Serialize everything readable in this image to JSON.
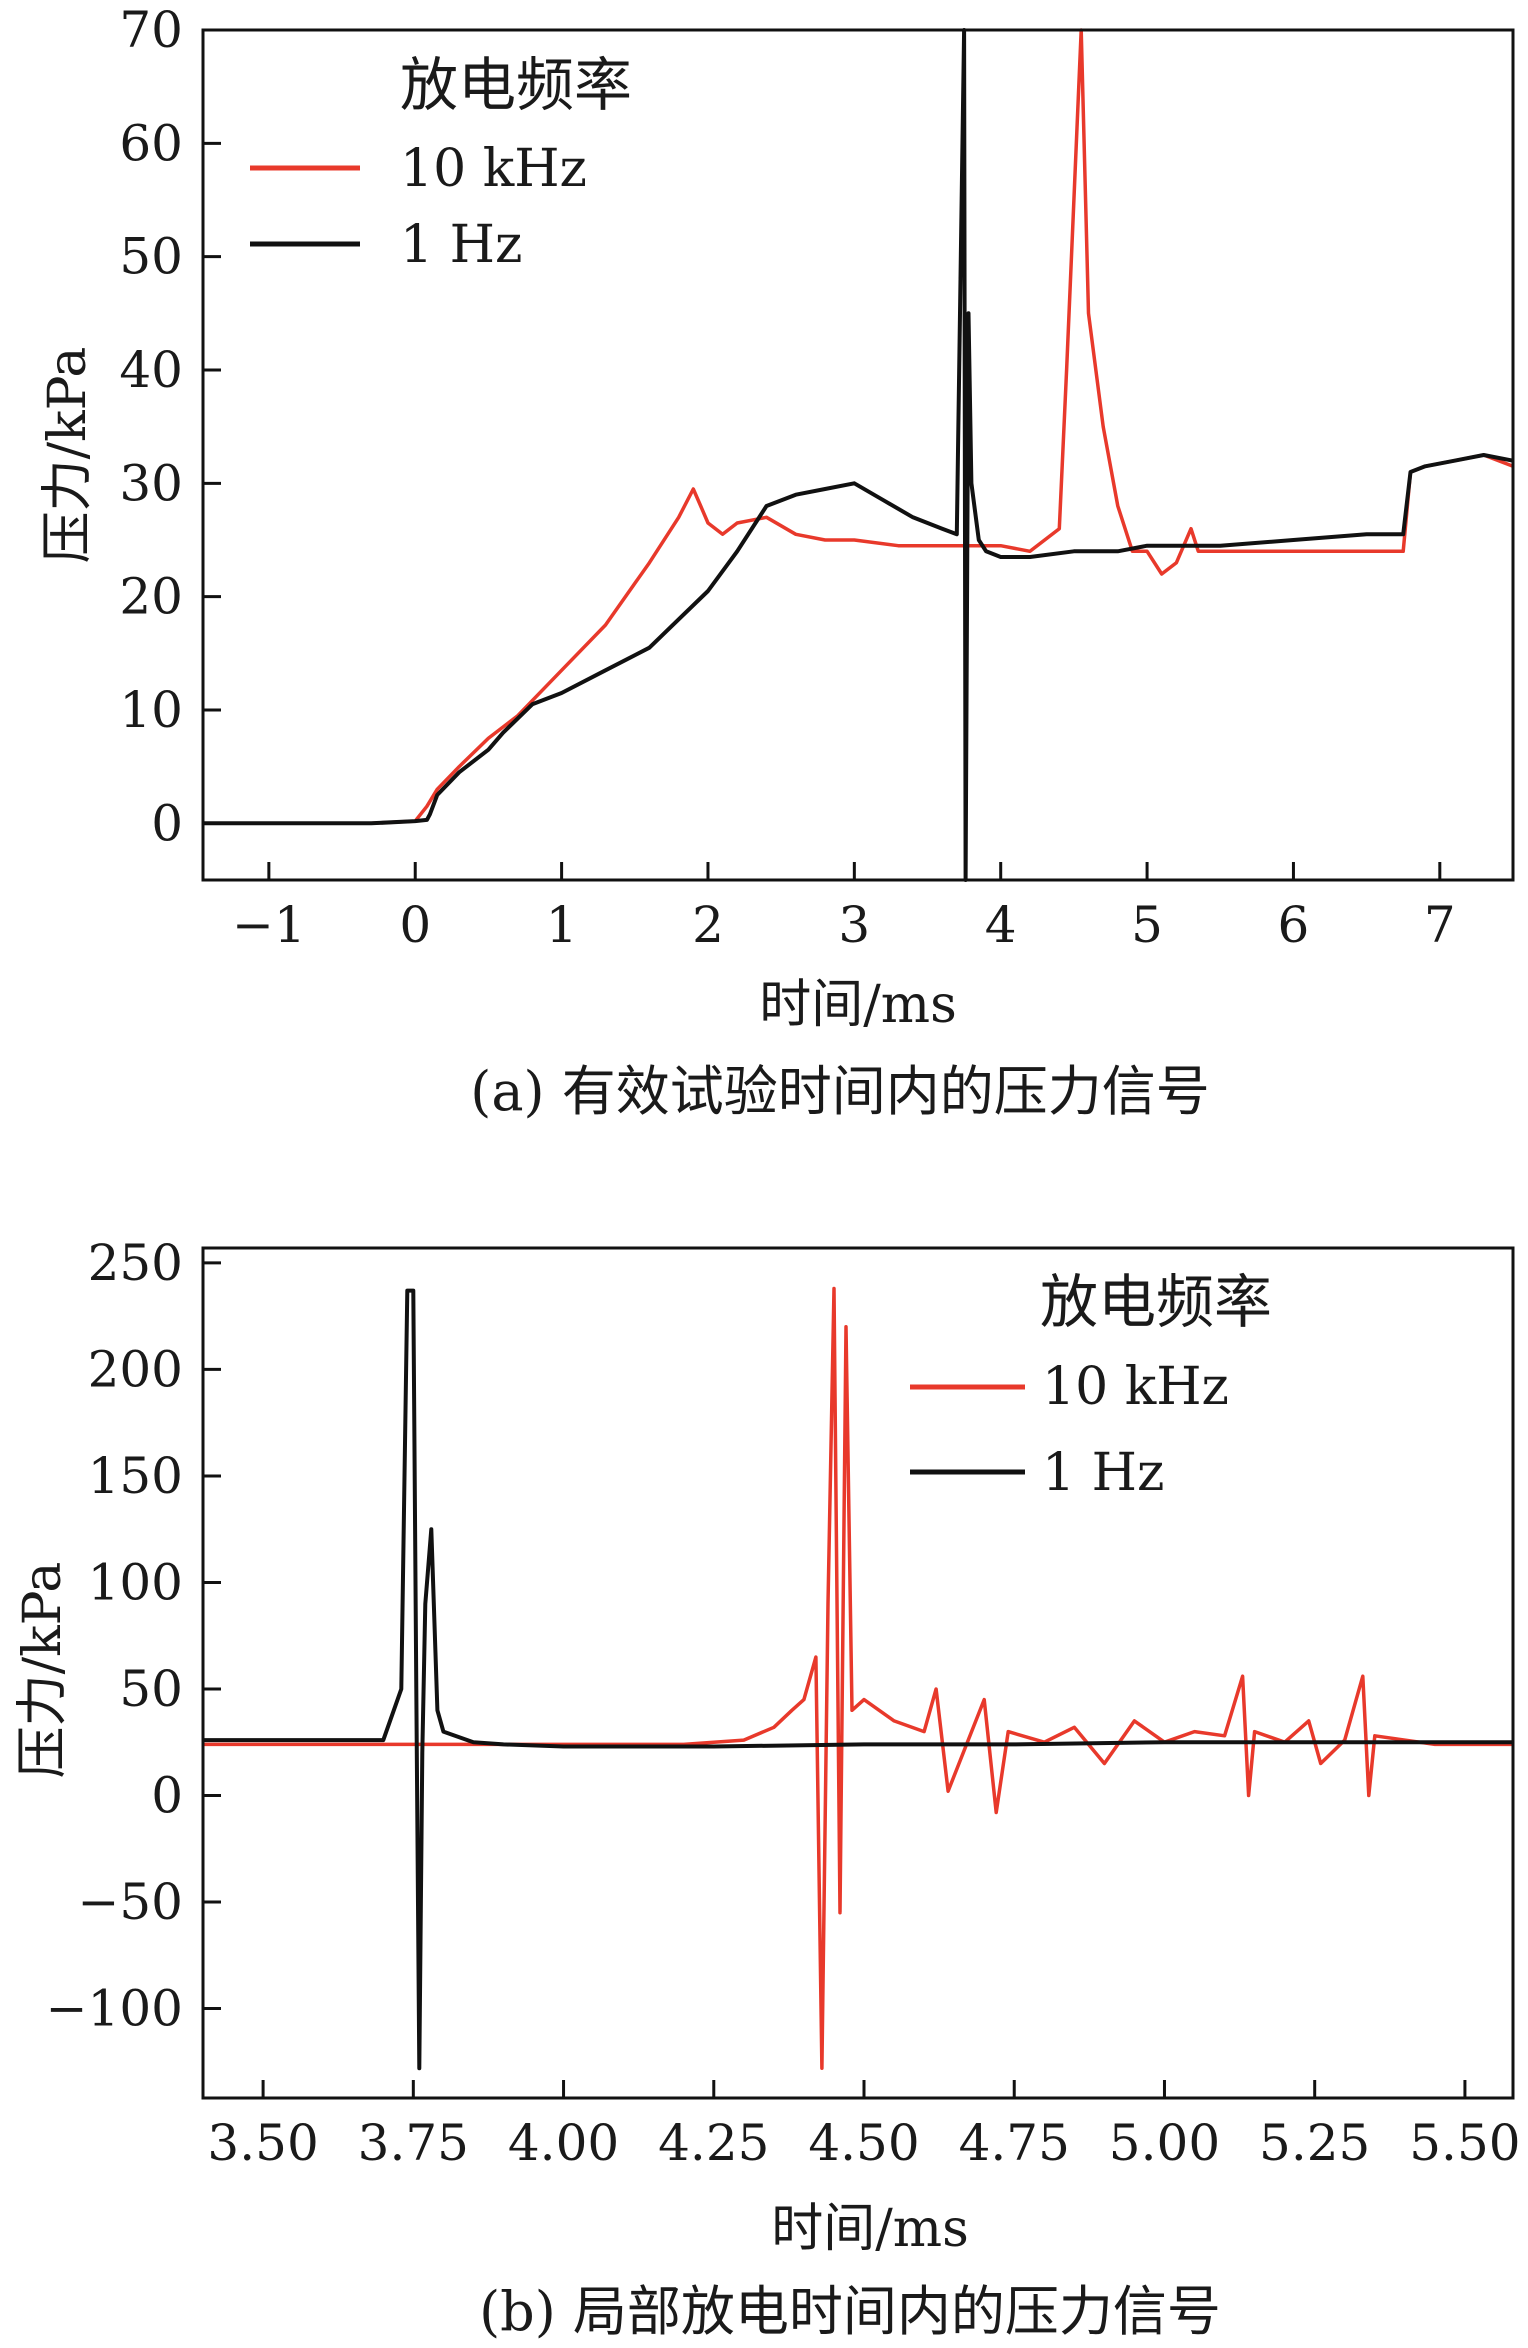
{
  "chart_data": [
    {
      "type": "line",
      "xlabel": "时间/ms",
      "ylabel": "压力/kPa",
      "caption": "(a) 有效试验时间内的压力信号",
      "xlim": [
        -1.45,
        7.5
      ],
      "ylim": [
        -5,
        70
      ],
      "xticks": [
        -1,
        0,
        1,
        2,
        3,
        4,
        5,
        6,
        7
      ],
      "xtick_labels": [
        "−1",
        "0",
        "1",
        "2",
        "3",
        "4",
        "5",
        "6",
        "7"
      ],
      "yticks": [
        0,
        10,
        20,
        30,
        40,
        50,
        60,
        70
      ],
      "ytick_labels": [
        "0",
        "10",
        "20",
        "30",
        "40",
        "50",
        "60",
        "70"
      ],
      "legend": {
        "title": "放电频率",
        "position": "top-left"
      },
      "series": [
        {
          "name": "10 kHz",
          "color": "#e8392b",
          "x": [
            -1.45,
            -0.8,
            -0.3,
            0.0,
            0.08,
            0.15,
            0.3,
            0.5,
            0.7,
            1.0,
            1.3,
            1.6,
            1.8,
            1.9,
            1.95,
            2.0,
            2.1,
            2.2,
            2.4,
            2.6,
            2.8,
            3.0,
            3.3,
            3.6,
            3.8,
            4.0,
            4.2,
            4.4,
            4.45,
            4.5,
            4.55,
            4.6,
            4.7,
            4.8,
            4.9,
            5.0,
            5.1,
            5.2,
            5.3,
            5.35,
            5.5,
            6.0,
            6.5,
            6.75,
            6.8,
            6.9,
            7.1,
            7.3,
            7.5
          ],
          "y": [
            0,
            0,
            0,
            0.2,
            1.5,
            3,
            5,
            7.5,
            9.5,
            13.5,
            17.5,
            23,
            27,
            29.5,
            28,
            26.5,
            25.5,
            26.5,
            27,
            25.5,
            25,
            25,
            24.5,
            24.5,
            24.5,
            24.5,
            24,
            26,
            40,
            55,
            70,
            45,
            35,
            28,
            24,
            24,
            22,
            23,
            26,
            24,
            24,
            24,
            24,
            24,
            31,
            31.5,
            32,
            32.5,
            31.5
          ]
        },
        {
          "name": "1 Hz",
          "color": "#111111",
          "x": [
            -1.45,
            -0.8,
            -0.3,
            0.0,
            0.08,
            0.1,
            0.15,
            0.3,
            0.5,
            0.6,
            0.8,
            1.0,
            1.3,
            1.6,
            1.8,
            2.0,
            2.2,
            2.4,
            2.6,
            2.8,
            3.0,
            3.2,
            3.4,
            3.6,
            3.7,
            3.75,
            3.76,
            3.78,
            3.8,
            3.85,
            3.9,
            4.0,
            4.2,
            4.5,
            4.8,
            5.0,
            5.5,
            6.0,
            6.5,
            6.75,
            6.8,
            6.9,
            7.1,
            7.3,
            7.5
          ],
          "y": [
            0,
            0,
            0,
            0.2,
            0.3,
            0.8,
            2.5,
            4.5,
            6.5,
            8,
            10.5,
            11.5,
            13.5,
            15.5,
            18,
            20.5,
            24,
            28,
            29,
            29.5,
            30,
            28.5,
            27,
            26,
            25.5,
            70,
            -5,
            45,
            30,
            25,
            24,
            23.5,
            23.5,
            24,
            24,
            24.5,
            24.5,
            25,
            25.5,
            25.5,
            31,
            31.5,
            32,
            32.5,
            32
          ]
        }
      ]
    },
    {
      "type": "line",
      "xlabel": "时间/ms",
      "ylabel": "压力/kPa",
      "caption": "(b) 局部放电时间内的压力信号",
      "xlim": [
        3.4,
        5.58
      ],
      "ylim": [
        -142,
        257
      ],
      "xticks": [
        3.5,
        3.75,
        4.0,
        4.25,
        4.5,
        4.75,
        5.0,
        5.25,
        5.5
      ],
      "xtick_labels": [
        "3.50",
        "3.75",
        "4.00",
        "4.25",
        "4.50",
        "4.75",
        "5.00",
        "5.25",
        "5.50"
      ],
      "yticks": [
        -100,
        -50,
        0,
        50,
        100,
        150,
        200,
        250
      ],
      "ytick_labels": [
        "−100",
        "−50",
        "0",
        "50",
        "100",
        "150",
        "200",
        "250"
      ],
      "legend": {
        "title": "放电频率",
        "position": "top-right"
      },
      "series": [
        {
          "name": "10 kHz",
          "color": "#e8392b",
          "x": [
            3.4,
            3.6,
            3.8,
            4.0,
            4.2,
            4.3,
            4.35,
            4.38,
            4.4,
            4.42,
            4.43,
            4.44,
            4.45,
            4.46,
            4.47,
            4.48,
            4.5,
            4.55,
            4.6,
            4.62,
            4.64,
            4.7,
            4.72,
            4.74,
            4.8,
            4.85,
            4.9,
            4.95,
            5.0,
            5.05,
            5.1,
            5.13,
            5.14,
            5.15,
            5.2,
            5.24,
            5.26,
            5.3,
            5.33,
            5.34,
            5.35,
            5.45,
            5.58
          ],
          "y": [
            24,
            24,
            24,
            24,
            24,
            26,
            32,
            40,
            45,
            65,
            -128,
            90,
            238,
            -55,
            220,
            40,
            45,
            35,
            30,
            50,
            2,
            45,
            -8,
            30,
            25,
            32,
            15,
            35,
            25,
            30,
            28,
            56,
            0,
            30,
            25,
            35,
            15,
            26,
            56,
            0,
            28,
            24,
            24
          ]
        },
        {
          "name": "1 Hz",
          "color": "#111111",
          "x": [
            3.4,
            3.6,
            3.7,
            3.73,
            3.74,
            3.75,
            3.755,
            3.76,
            3.765,
            3.77,
            3.78,
            3.79,
            3.8,
            3.85,
            3.9,
            4.0,
            4.25,
            4.5,
            4.75,
            5.0,
            5.25,
            5.58
          ],
          "y": [
            26,
            26,
            26,
            50,
            237,
            237,
            50,
            -128,
            20,
            90,
            125,
            40,
            30,
            25,
            24,
            23,
            23,
            24,
            24,
            25,
            25,
            25
          ]
        }
      ]
    }
  ]
}
